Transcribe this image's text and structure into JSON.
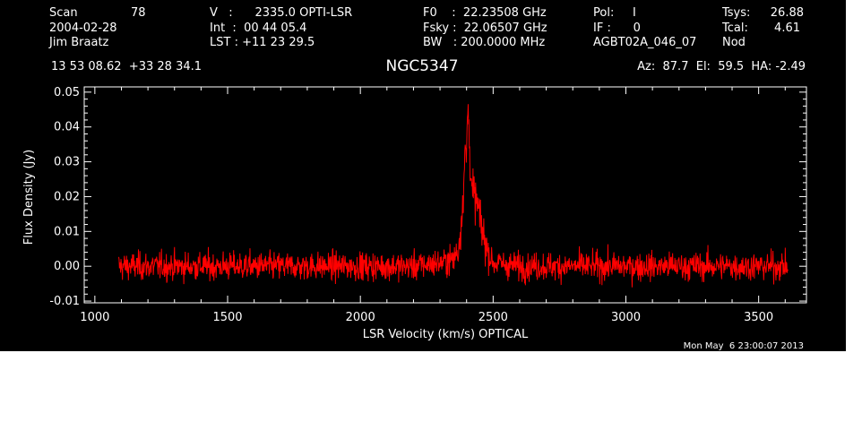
{
  "header": {
    "col1": {
      "scan_label": "Scan",
      "scan_value": "78",
      "date": "2004-02-28",
      "observer": "Jim Braatz"
    },
    "col2": {
      "velocity": "V   :      2335.0 OPTI-LSR",
      "integration": "Int  :  00 44 05.4",
      "lst": "LST : +11 23 29.5"
    },
    "col3": {
      "f0": "F0    :  22.23508 GHz",
      "fsky": "Fsky :  22.06507 GHz",
      "bw": "BW   : 200.0000 MHz"
    },
    "col4": {
      "pol": "Pol:     I",
      "if": "IF :      0",
      "project": "AGBT02A_046_07"
    },
    "col5": {
      "tsys_label": "Tsys:",
      "tsys_value": "26.88",
      "tcal_label": "Tcal:",
      "tcal_value": "4.61",
      "mode": "Nod"
    },
    "coords": "13 53 08.62  +33 28 34.1",
    "source": "NGC5347",
    "pointing": "Az:  87.7  El:  59.5  HA: -2.49"
  },
  "timestamp": "Mon May  6 23:00:07 2013",
  "colors": {
    "background": "#000000",
    "axes": "#ffffff",
    "series": "#ff0000"
  },
  "chart_data": {
    "type": "line",
    "title": "NGC5347",
    "xlabel": "LSR Velocity (km/s) OPTICAL",
    "ylabel": "Flux Density (Jy)",
    "xlim": [
      960,
      3680
    ],
    "ylim": [
      -0.0105,
      0.0515
    ],
    "xticks": [
      "1000",
      "1500",
      "2000",
      "2500",
      "3000",
      "3500"
    ],
    "yticks": [
      "-0.01",
      "0.00",
      "0.01",
      "0.02",
      "0.03",
      "0.04",
      "0.05"
    ],
    "x_tick_values": [
      1000,
      1500,
      2000,
      2500,
      3000,
      3500
    ],
    "y_tick_values": [
      -0.01,
      0,
      0.01,
      0.02,
      0.03,
      0.04,
      0.05
    ],
    "grid": false,
    "series": [
      {
        "noise_sigma": 0.002,
        "x": [
          1090,
          1300,
          1600,
          1900,
          2200,
          2300,
          2350,
          2370,
          2385,
          2395,
          2400,
          2405,
          2410,
          2420,
          2430,
          2440,
          2460,
          2480,
          2500,
          2600,
          2800,
          3100,
          3400,
          3610
        ],
        "values": [
          0.0,
          0.0,
          0.0,
          0.0,
          0.0,
          0.001,
          0.002,
          0.005,
          0.018,
          0.033,
          0.031,
          0.048,
          0.036,
          0.022,
          0.02,
          0.018,
          0.01,
          0.004,
          0.001,
          0.0,
          0.0,
          0.0,
          0.0,
          0.0
        ]
      }
    ]
  }
}
